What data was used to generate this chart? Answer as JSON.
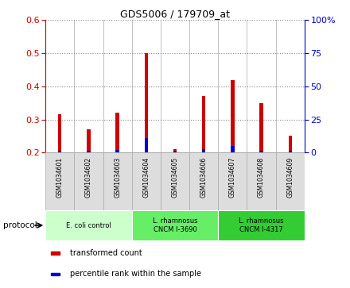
{
  "title": "GDS5006 / 179709_at",
  "samples": [
    "GSM1034601",
    "GSM1034602",
    "GSM1034603",
    "GSM1034604",
    "GSM1034605",
    "GSM1034606",
    "GSM1034607",
    "GSM1034608",
    "GSM1034609"
  ],
  "red_values": [
    0.315,
    0.27,
    0.32,
    0.5,
    0.21,
    0.37,
    0.42,
    0.35,
    0.252
  ],
  "blue_values": [
    0.205,
    0.205,
    0.207,
    0.245,
    0.205,
    0.21,
    0.22,
    0.205,
    0.205
  ],
  "ylim_left": [
    0.2,
    0.6
  ],
  "ylim_right": [
    0,
    100
  ],
  "yticks_left": [
    0.2,
    0.3,
    0.4,
    0.5,
    0.6
  ],
  "yticks_right": [
    0,
    25,
    50,
    75,
    100
  ],
  "ytick_right_labels": [
    "0",
    "25",
    "50",
    "75",
    "100%"
  ],
  "protocols": [
    {
      "label": "E. coli control",
      "start": 0,
      "end": 3,
      "color": "#ccffcc"
    },
    {
      "label": "L. rhamnosus\nCNCM I-3690",
      "start": 3,
      "end": 6,
      "color": "#66ee66"
    },
    {
      "label": "L. rhamnosus\nCNCM I-4317",
      "start": 6,
      "end": 9,
      "color": "#33cc33"
    }
  ],
  "legend_items": [
    {
      "label": "transformed count",
      "color": "#cc0000"
    },
    {
      "label": "percentile rank within the sample",
      "color": "#0000cc"
    }
  ],
  "bar_color_red": "#cc0000",
  "bar_color_blue": "#0000cc",
  "left_color": "#cc0000",
  "right_color": "#0000cc",
  "protocol_label": "protocol",
  "cell_bg": "#dddddd"
}
